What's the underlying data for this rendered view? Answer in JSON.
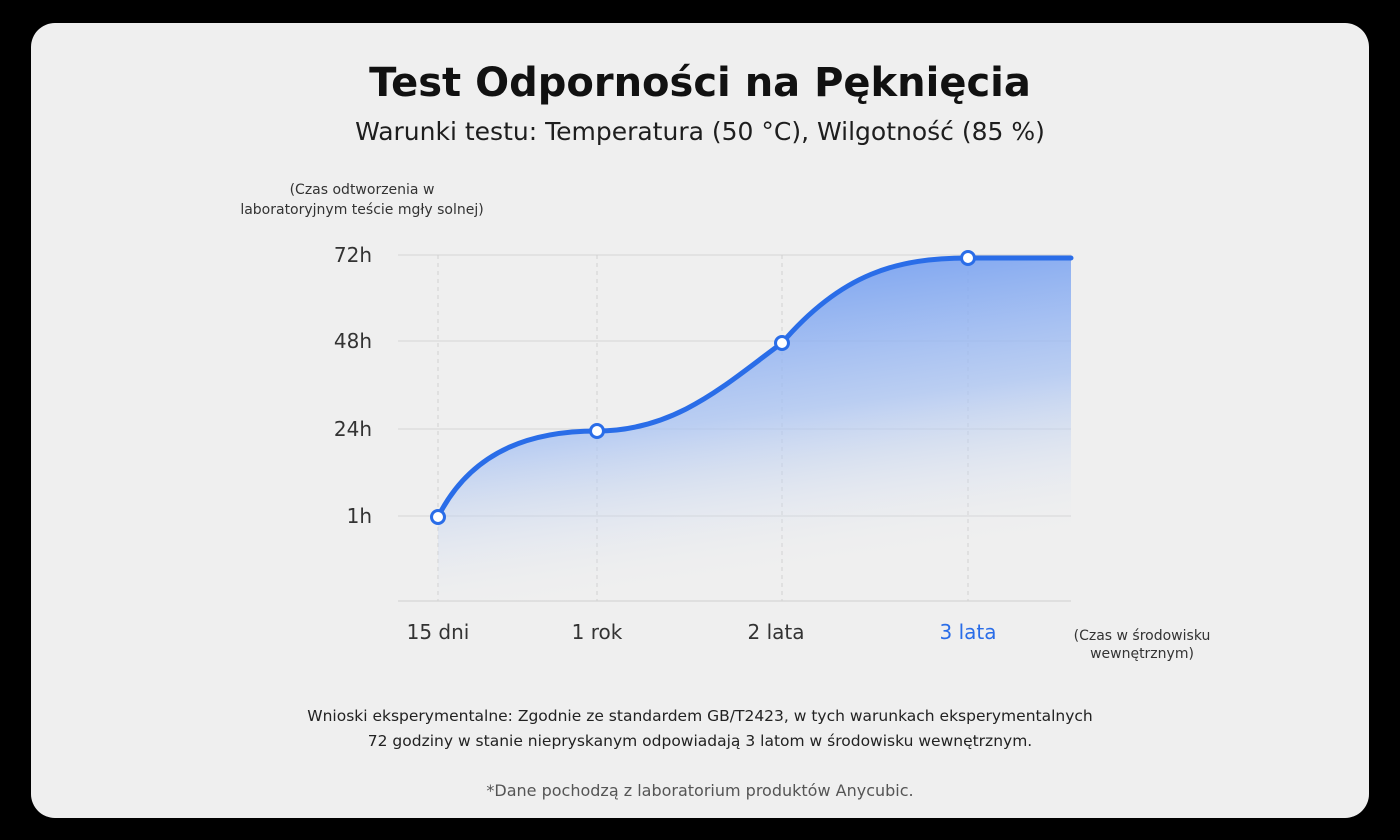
{
  "title": "Test Odporności na Pęknięcia",
  "subtitle": "Warunki testu: Temperatura (50 °C), Wilgotność (85 %)",
  "conclusion_line1": "Wnioski eksperymentalne: Zgodnie ze standardem GB/T2423, w tych warunkach eksperymentalnych",
  "conclusion_line2": "72 godziny w stanie niepryskanym odpowiadają 3 latom w środowisku wewnętrznym.",
  "source_note": "*Dane pochodzą z laboratorium produktów Anycubic.",
  "colors": {
    "card_background": "#efefef",
    "line": "#2a6de8",
    "highlight_label": "#2a6de8",
    "fill_top": "#5d8ff0"
  },
  "chart_data": {
    "type": "area",
    "title": "Test Odporności na Pęknięcia",
    "ylabel_line1": "(Czas odtworzenia w",
    "ylabel_line2": "laboratoryjnym teście mgły solnej)",
    "xlabel_line1": "(Czas w środowisku",
    "xlabel_line2": "wewnętrznym)",
    "categories": [
      "15 dni",
      "1 rok",
      "2 lata",
      "3 lata"
    ],
    "highlighted_category": "3 lata",
    "y_ticks": [
      "1h",
      "24h",
      "48h",
      "72h"
    ],
    "values": [
      1,
      24,
      48,
      72
    ],
    "grid": true,
    "legend": "none"
  }
}
